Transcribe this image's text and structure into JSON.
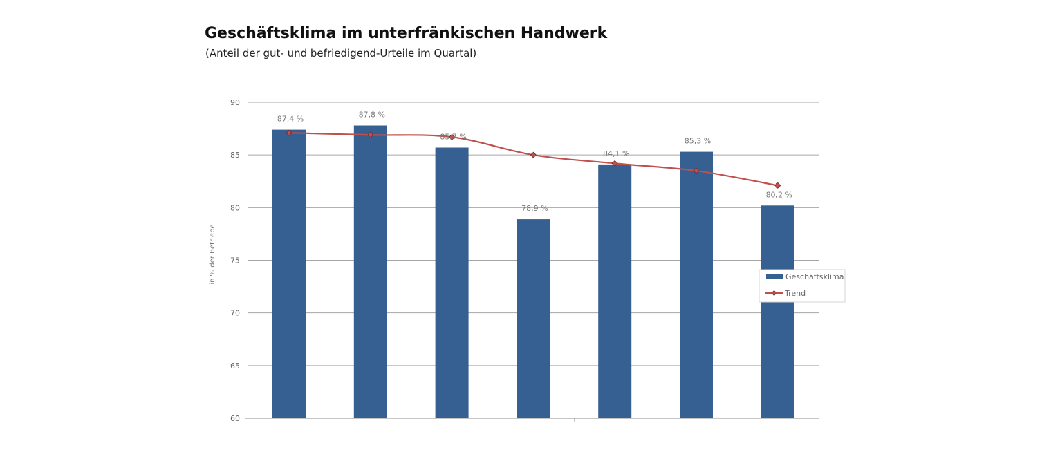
{
  "chart_data": {
    "type": "bar",
    "title": "Geschäftsklima im unterfränkischen Handwerk",
    "subtitle": "(Anteil der gut- und befriedigend-Urteile im Quartal)",
    "xlabel": "",
    "ylabel": "in % der Betriebe",
    "ylim": [
      60,
      90
    ],
    "yticks": [
      60,
      65,
      70,
      75,
      80,
      85,
      90
    ],
    "ytick_labels": [
      "60",
      "65",
      "70",
      "75",
      "80",
      "85",
      "90"
    ],
    "grid": true,
    "legend_position": "right",
    "series": [
      {
        "name": "Geschäftsklima",
        "type": "bar",
        "color": "#376092",
        "values": [
          87.4,
          87.8,
          85.7,
          78.9,
          84.1,
          85.3,
          80.2
        ],
        "labels": [
          "87,4 %",
          "87,8 %",
          "85,7 %",
          "78,9 %",
          "84,1 %",
          "85,3 %",
          "80,2 %"
        ]
      },
      {
        "name": "Trend",
        "type": "line",
        "color": "#c0504d",
        "values": [
          87.1,
          86.9,
          86.7,
          85.0,
          84.2,
          83.5,
          82.1
        ]
      }
    ]
  }
}
